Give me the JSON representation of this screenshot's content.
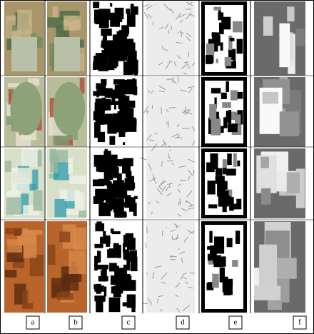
{
  "labels": [
    "a",
    "b",
    "c",
    "d",
    "e",
    "f"
  ]
}
